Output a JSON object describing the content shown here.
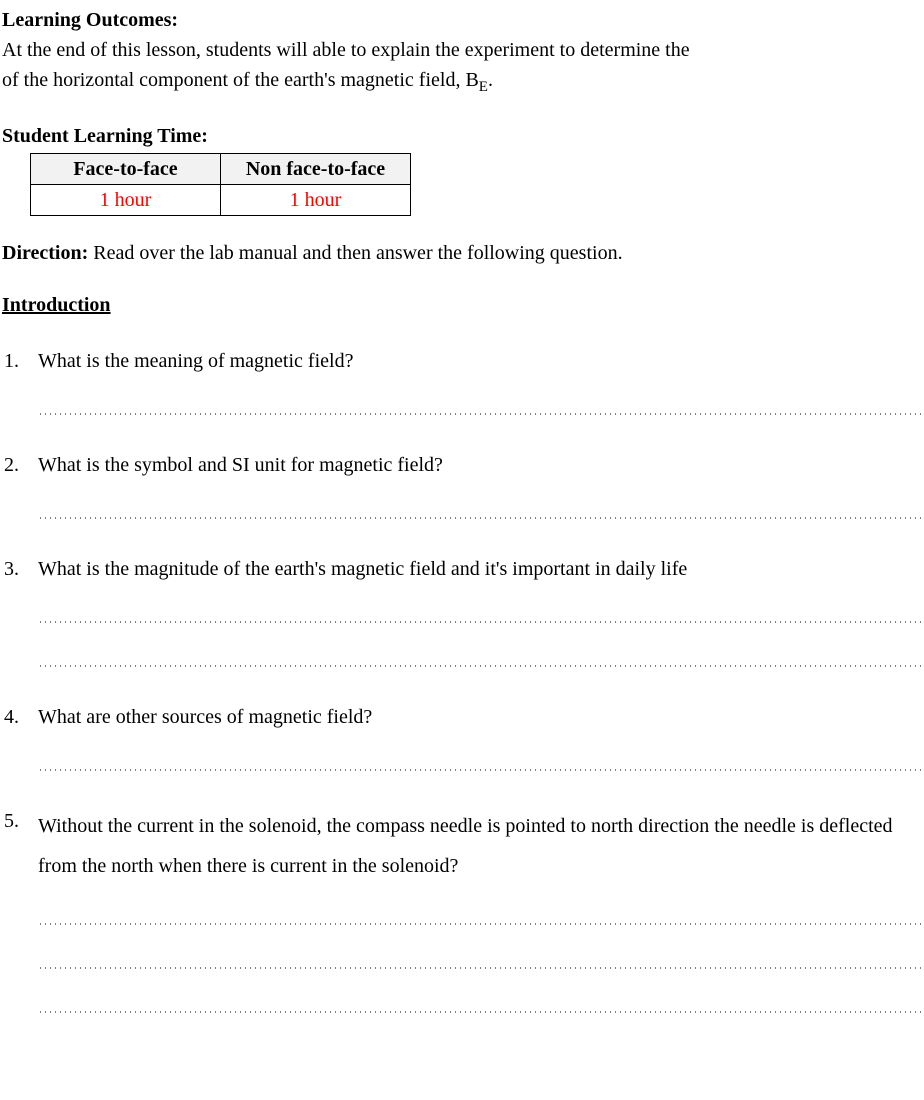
{
  "outcomes": {
    "heading": "Learning Outcomes:",
    "text_part1": "At the end of this lesson, students will able to explain the experiment to determine the",
    "text_part2": "of the horizontal component of the earth's magnetic field, B",
    "subscript": "E",
    "text_part3": "."
  },
  "slt": {
    "heading": "Student Learning Time:",
    "col1_header": "Face-to-face",
    "col2_header": "Non face-to-face",
    "col1_value": "1 hour",
    "col2_value": "1 hour",
    "value_color": "#ff0000",
    "header_bg": "#f2f2f2"
  },
  "direction": {
    "label": "Direction:",
    "text": " Read over the lab manual and then answer the following question."
  },
  "intro_heading": "Introduction",
  "questions": [
    {
      "text": "What is the meaning of magnetic field?",
      "blank_lines": 1
    },
    {
      "text": "What is the symbol and SI unit for magnetic field?",
      "blank_lines": 1
    },
    {
      "text": "What is the magnitude of the earth's magnetic field and it's important in daily life",
      "blank_lines": 2
    },
    {
      "text": "What are other sources of magnetic field?",
      "blank_lines": 1
    },
    {
      "text": "Without the current in the solenoid, the compass needle is pointed to north direction the needle is deflected from the north when there is current in the solenoid?",
      "blank_lines": 3,
      "wide_spacing": true
    }
  ],
  "style": {
    "font_family": "Times New Roman",
    "body_fontsize": 20,
    "text_color": "#000000",
    "background_color": "#ffffff"
  }
}
